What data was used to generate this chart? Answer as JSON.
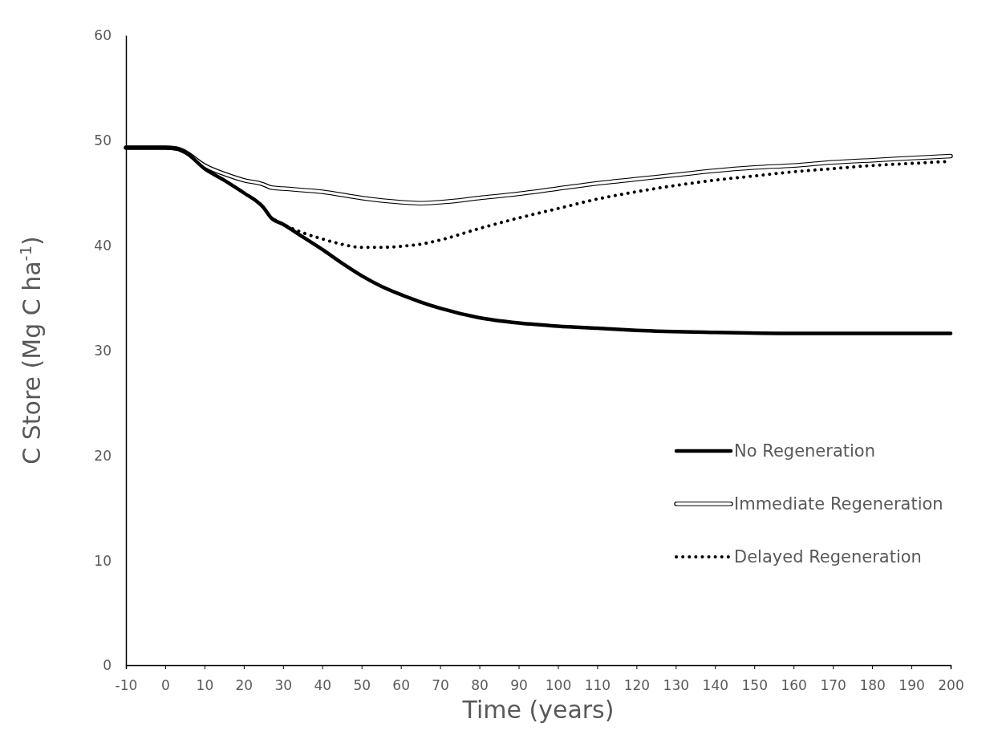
{
  "chart_data": {
    "type": "line",
    "xlabel": "Time (years)",
    "ylabel": "C Store (Mg C ha$^{-1}$)",
    "xlim": [
      -10,
      200
    ],
    "xticks": [
      -10,
      0,
      10,
      20,
      30,
      40,
      50,
      60,
      70,
      80,
      90,
      100,
      110,
      120,
      130,
      140,
      150,
      160,
      170,
      180,
      190,
      200
    ],
    "ylim": [
      0,
      60
    ],
    "yticks": [
      0,
      10,
      20,
      30,
      40,
      50,
      60
    ],
    "grid": false,
    "legend": "bottom right",
    "marker": "none",
    "series": [
      {
        "name": "No Regeneration",
        "color": "#000000",
        "line_style": "solid",
        "x": [
          -10,
          0,
          3,
          5,
          10,
          15,
          20,
          25,
          27,
          30,
          35,
          40,
          45,
          50,
          55,
          60,
          65,
          70,
          80,
          90,
          100,
          110,
          120,
          140,
          160,
          180,
          200
        ],
        "values": [
          49.3,
          49.3,
          49.2,
          48.9,
          47.3,
          46.2,
          45.0,
          43.6,
          42.6,
          42.0,
          40.8,
          39.6,
          38.3,
          37.1,
          36.1,
          35.3,
          34.6,
          34.0,
          33.1,
          32.6,
          32.3,
          32.1,
          31.9,
          31.7,
          31.6,
          31.6,
          31.6
        ]
      },
      {
        "name": "Immediate Regeneration",
        "color": "#000000",
        "line_style": "solid",
        "x": [
          -10,
          0,
          3,
          5,
          10,
          15,
          20,
          25,
          27,
          30,
          40,
          50,
          60,
          65,
          70,
          80,
          90,
          100,
          110,
          120,
          130,
          140,
          150,
          160,
          170,
          180,
          190,
          200
        ],
        "values": [
          49.3,
          49.3,
          49.2,
          48.9,
          47.6,
          46.8,
          46.2,
          45.8,
          45.5,
          45.4,
          45.1,
          44.5,
          44.1,
          44.0,
          44.1,
          44.5,
          44.9,
          45.4,
          45.9,
          46.3,
          46.7,
          47.1,
          47.4,
          47.6,
          47.9,
          48.1,
          48.3,
          48.5
        ]
      },
      {
        "name": "Delayed Regeneration",
        "color": "#000000",
        "line_style": "dotted",
        "x": [
          28,
          30,
          35,
          40,
          45,
          50,
          55,
          60,
          65,
          70,
          80,
          90,
          100,
          110,
          120,
          130,
          140,
          150,
          160,
          170,
          180,
          190,
          200
        ],
        "values": [
          42.4,
          42.0,
          41.2,
          40.6,
          40.1,
          39.8,
          39.8,
          39.9,
          40.1,
          40.5,
          41.6,
          42.6,
          43.5,
          44.4,
          45.1,
          45.7,
          46.2,
          46.6,
          47.0,
          47.3,
          47.6,
          47.8,
          48.0
        ]
      }
    ]
  }
}
